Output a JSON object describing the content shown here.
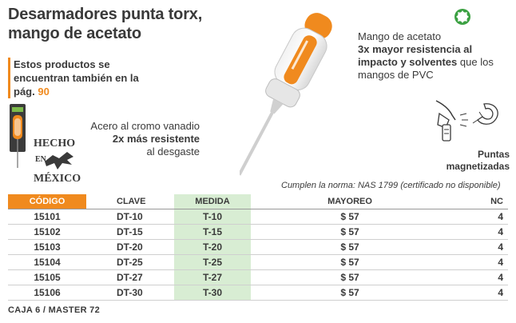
{
  "title": {
    "line1": "Desarmadores punta torx,",
    "line2": "mango de acetato"
  },
  "crossref": {
    "text": "Estos productos se encuentran también en la pág.",
    "page": "90"
  },
  "made_in": {
    "line1": "HECHO",
    "line2": "EN",
    "line3": "MÉXICO"
  },
  "callouts": {
    "acetato": {
      "intro": "Mango de acetato",
      "bold": "3x mayor resistencia al impacto y solventes",
      "rest": "que los mangos de PVC"
    },
    "acero": {
      "intro": "Acero al cromo vanadio",
      "bold": "2x más resistente",
      "rest": "al desgaste"
    },
    "puntas": {
      "line1": "Puntas",
      "line2": "magnetizadas"
    }
  },
  "norma": "Cumplen la norma: NAS 1799 (certificado no disponible)",
  "table": {
    "headers": {
      "codigo": "CÓDIGO",
      "clave": "CLAVE",
      "medida": "MEDIDA",
      "mayoreo": "MAYOREO",
      "nc": "NC"
    },
    "rows": [
      {
        "codigo": "15101",
        "clave": "DT-10",
        "medida": "T-10",
        "mayoreo": "$ 57",
        "nc": "4"
      },
      {
        "codigo": "15102",
        "clave": "DT-15",
        "medida": "T-15",
        "mayoreo": "$ 57",
        "nc": "4"
      },
      {
        "codigo": "15103",
        "clave": "DT-20",
        "medida": "T-20",
        "mayoreo": "$ 57",
        "nc": "4"
      },
      {
        "codigo": "15104",
        "clave": "DT-25",
        "medida": "T-25",
        "mayoreo": "$ 57",
        "nc": "4"
      },
      {
        "codigo": "15105",
        "clave": "DT-27",
        "medida": "T-27",
        "mayoreo": "$ 57",
        "nc": "4"
      },
      {
        "codigo": "15106",
        "clave": "DT-30",
        "medida": "T-30",
        "mayoreo": "$ 57",
        "nc": "4"
      }
    ]
  },
  "footer": "CAJA 6 / MASTER 72",
  "colors": {
    "accent": "#f08a1e",
    "text": "#3a3a3a",
    "highlight": "#d8edd3",
    "torx": "#3aa041"
  },
  "icons": {
    "torx": "torx-star-icon",
    "magnet": "magnet-icon",
    "driver": "screwdriver-image",
    "package": "package-image",
    "made_in": "made-in-mexico-logo"
  }
}
